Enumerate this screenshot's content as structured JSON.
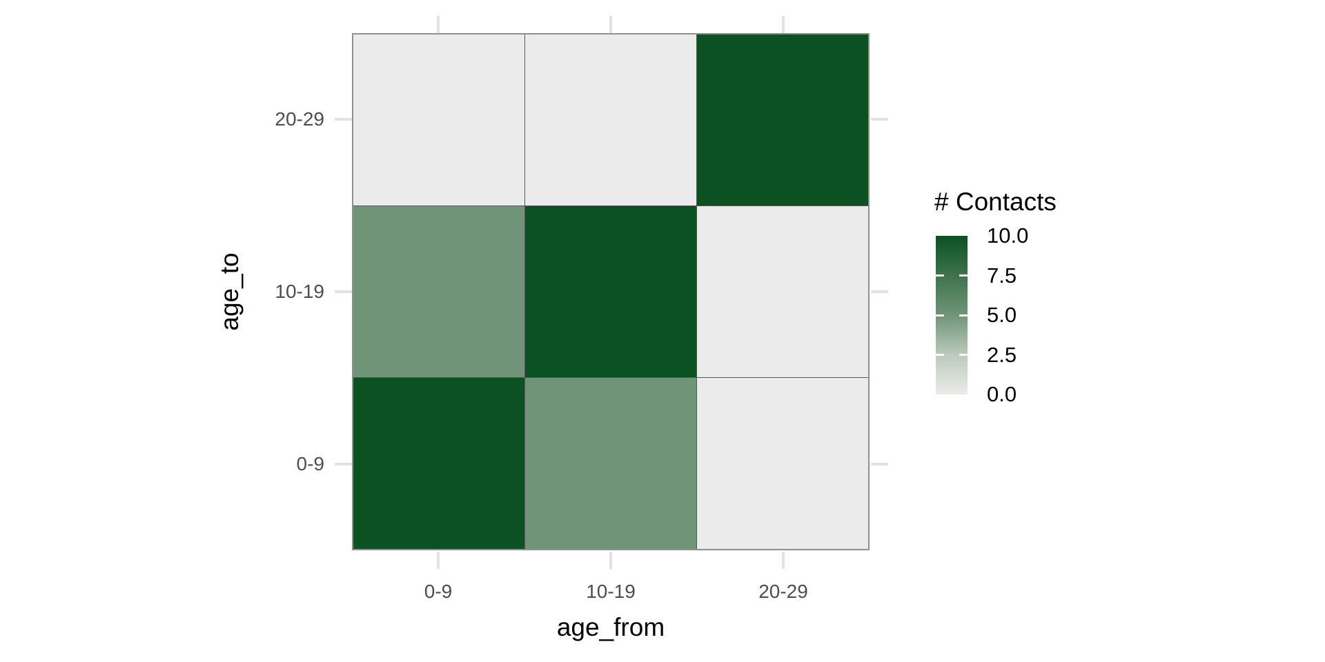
{
  "chart_data": {
    "type": "heatmap",
    "title": "",
    "xlabel": "age_from",
    "ylabel": "age_to",
    "x_categories": [
      "0-9",
      "10-19",
      "20-29"
    ],
    "y_categories_bottom_to_top": [
      "0-9",
      "10-19",
      "20-29"
    ],
    "rows_top_to_bottom": [
      {
        "age_to": "20-29",
        "values_by_age_from": [
          0,
          0,
          10
        ]
      },
      {
        "age_to": "10-19",
        "values_by_age_from": [
          5,
          10,
          0
        ]
      },
      {
        "age_to": "0-9",
        "values_by_age_from": [
          10,
          5,
          0
        ]
      }
    ],
    "value_range": [
      0,
      10
    ],
    "legend": {
      "title": "# Contacts",
      "breaks": [
        10.0,
        7.5,
        5.0,
        2.5,
        0.0
      ],
      "labels": [
        "10.0",
        "7.5",
        "5.0",
        "2.5",
        "0.0"
      ],
      "position": "right"
    },
    "color_scale": {
      "stops": [
        {
          "value": 0,
          "color": "#ebebeb"
        },
        {
          "value": 2.5,
          "color": "#bcc9bc"
        },
        {
          "value": 5,
          "color": "#709478"
        },
        {
          "value": 7.5,
          "color": "#3e734d"
        },
        {
          "value": 10,
          "color": "#0b5121"
        }
      ]
    },
    "grid": false,
    "panel_border": true,
    "ticks_on_all_sides": true
  },
  "colors": {
    "background": "#ffffff",
    "tile_border": "#565656",
    "panel_border": "#8f8f8f",
    "axis_tick": "#e2e2e2",
    "axis_text": "#4d4d4d",
    "title_text": "#000000"
  }
}
